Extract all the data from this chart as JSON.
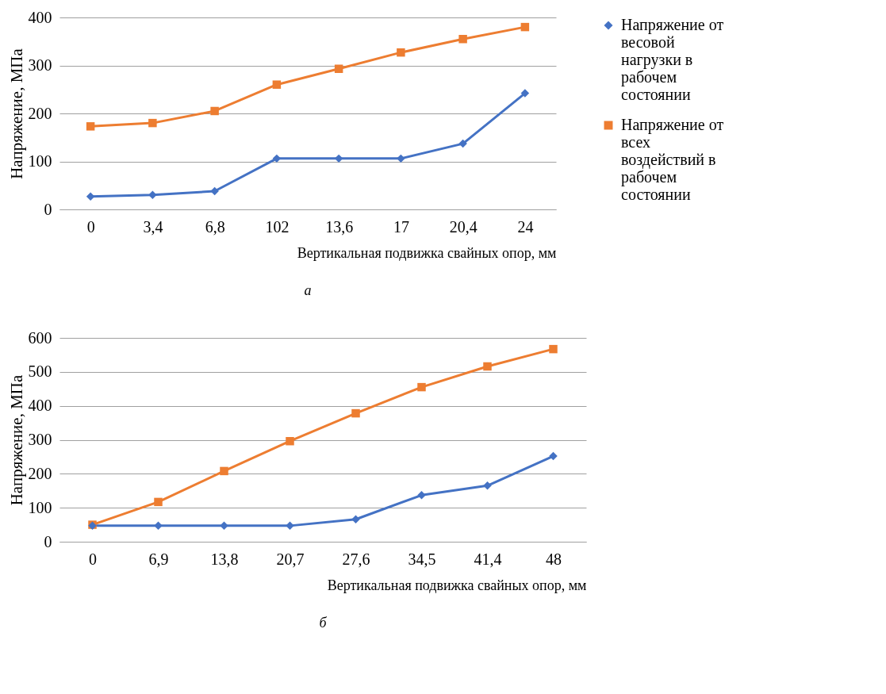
{
  "chart_data": [
    {
      "type": "line",
      "xlabel": "Вертикальная подвижка свайных опор, мм",
      "ylabel": "Напряжение, МПа",
      "categories": [
        "0",
        "3,4",
        "6,8",
        "102",
        "13,6",
        "17",
        "20,4",
        "24"
      ],
      "ylim": [
        0,
        400
      ],
      "yticks": [
        0,
        100,
        200,
        300,
        400
      ],
      "grid": "y",
      "legend": "right",
      "annotations": [
        "а"
      ],
      "series": [
        {
          "name": "Напряжение от весовой нагрузки в рабочем состоянии",
          "color": "#4472c4",
          "marker": "diamond",
          "values": [
            27,
            30,
            38,
            106,
            106,
            106,
            137,
            242
          ]
        },
        {
          "name": "Напряжение от всех воздействий в рабочем состоянии",
          "color": "#ed7d31",
          "marker": "square",
          "values": [
            173,
            180,
            205,
            260,
            293,
            327,
            355,
            380
          ]
        }
      ]
    },
    {
      "type": "line",
      "xlabel": "Вертикальная подвижка свайных опор, мм",
      "ylabel": "Напряжение, МПа",
      "categories": [
        "0",
        "6,9",
        "13,8",
        "20,7",
        "27,6",
        "34,5",
        "41,4",
        "48"
      ],
      "ylim": [
        0,
        600
      ],
      "yticks": [
        0,
        100,
        200,
        300,
        400,
        500,
        600
      ],
      "grid": "y",
      "legend": "right",
      "annotations": [
        "б"
      ],
      "series": [
        {
          "name": "Напряжение от весовой нагрузки в рабочем состоянии",
          "color": "#4472c4",
          "marker": "diamond",
          "values": [
            47,
            47,
            47,
            47,
            66,
            137,
            165,
            252
          ]
        },
        {
          "name": "Напряжение от всех воздействий в рабочем состоянии",
          "color": "#ed7d31",
          "marker": "square",
          "values": [
            50,
            117,
            208,
            296,
            378,
            455,
            516,
            567
          ]
        }
      ]
    }
  ]
}
